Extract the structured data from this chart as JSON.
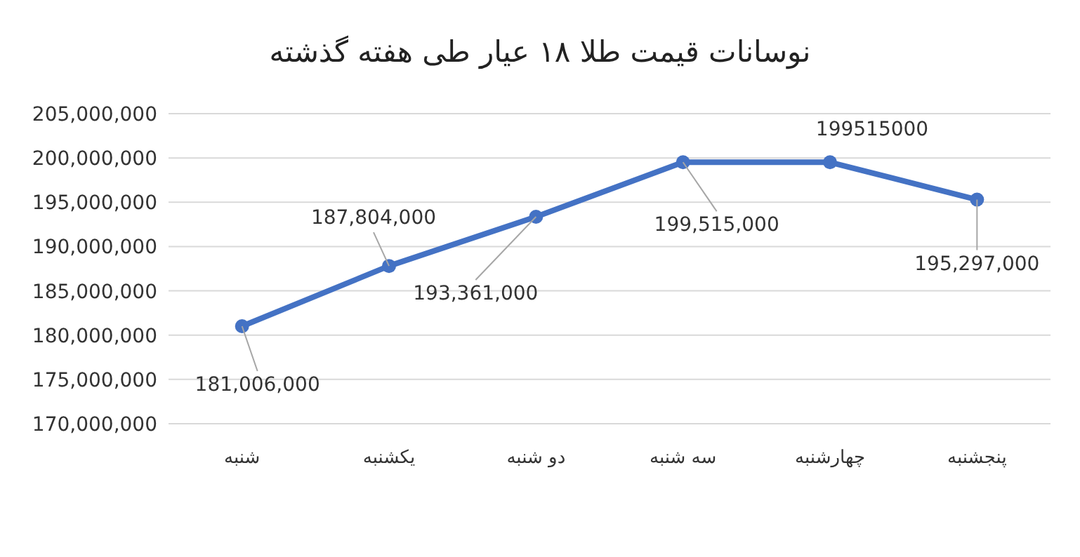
{
  "chart_data": {
    "type": "line",
    "title": "نوسانات قیمت طلا ۱۸ عیار طی هفته گذشته",
    "categories": [
      "شنبه",
      "یکشنبه",
      "دو شنبه",
      "سه شنبه",
      "چهارشنبه",
      "پنجشنبه"
    ],
    "series": [
      {
        "color": "#4472c4",
        "values": [
          181006000,
          187804000,
          193361000,
          199515000,
          199515000,
          195297000
        ],
        "value_labels": [
          "181,006,000",
          "187,804,000",
          "193,361,000",
          "199,515,000",
          "199515000",
          "195,297,000"
        ]
      }
    ],
    "ylim": [
      170000000,
      205000000
    ],
    "yticks": [
      {
        "value": 170000000,
        "label": "170,000,000"
      },
      {
        "value": 175000000,
        "label": "175,000,000"
      },
      {
        "value": 180000000,
        "label": "180,000,000"
      },
      {
        "value": 185000000,
        "label": "185,000,000"
      },
      {
        "value": 190000000,
        "label": "190,000,000"
      },
      {
        "value": 195000000,
        "label": "195,000,000"
      },
      {
        "value": 200000000,
        "label": "200,000,000"
      },
      {
        "value": 205000000,
        "label": "205,000,000"
      }
    ],
    "grid": "y",
    "marker": "circle",
    "line_style": "solid"
  }
}
